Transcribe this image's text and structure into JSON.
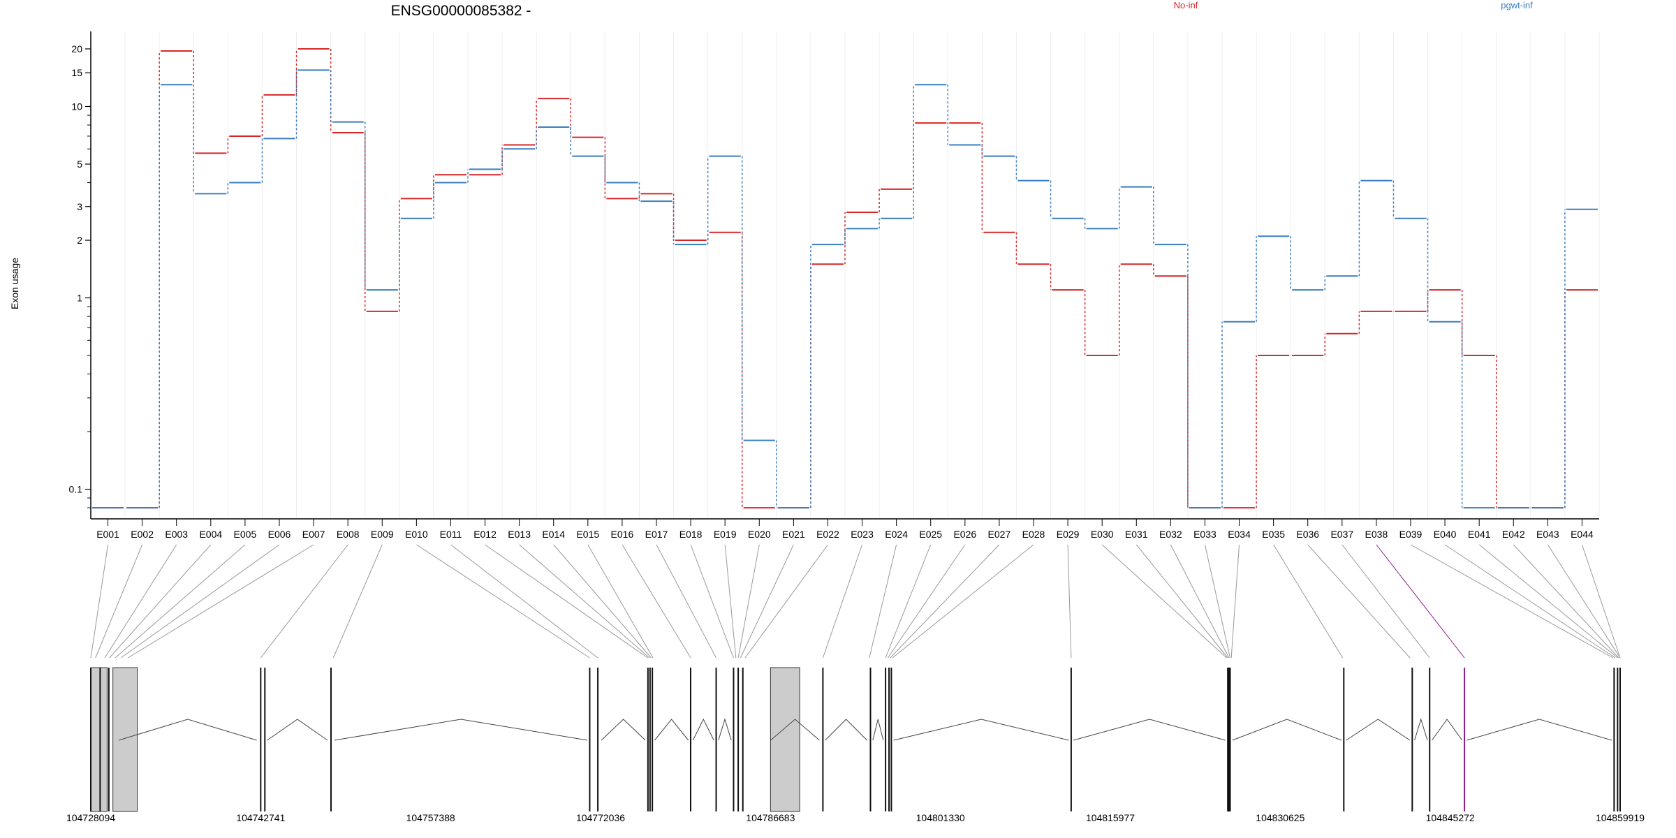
{
  "title": "ENSG00000085382 -",
  "legend": [
    {
      "label": "No-inf",
      "color": "#d62728"
    },
    {
      "label": "pgwt-inf",
      "color": "#3a7ebf"
    }
  ],
  "chart_data": {
    "type": "line",
    "title": "ENSG00000085382 -",
    "ylabel": "Exon usage",
    "y_scale": "log",
    "y_ticks": [
      0.1,
      1,
      2,
      3,
      5,
      10,
      15,
      20
    ],
    "y_tick_labels": [
      "0.1",
      "1",
      "2",
      "3",
      "5",
      "10",
      "15",
      "20"
    ],
    "categories": [
      "E001",
      "E002",
      "E003",
      "E004",
      "E005",
      "E006",
      "E007",
      "E008",
      "E009",
      "E010",
      "E011",
      "E012",
      "E013",
      "E014",
      "E015",
      "E016",
      "E017",
      "E018",
      "E019",
      "E020",
      "E021",
      "E022",
      "E023",
      "E024",
      "E025",
      "E026",
      "E027",
      "E028",
      "E029",
      "E030",
      "E031",
      "E032",
      "E033",
      "E034",
      "E035",
      "E036",
      "E037",
      "E038",
      "E039",
      "E040",
      "E041",
      "E042",
      "E043",
      "E044"
    ],
    "series": [
      {
        "name": "No-inf",
        "color": "#d62728",
        "values": [
          0.08,
          0.08,
          19.5,
          5.7,
          7,
          11.5,
          20,
          7.3,
          0.85,
          3.3,
          4.4,
          4.4,
          6.3,
          11,
          6.9,
          3.3,
          3.5,
          2,
          2.2,
          0.08,
          0.08,
          1.5,
          2.8,
          3.7,
          8.2,
          8.2,
          2.2,
          1.5,
          1.1,
          0.5,
          1.5,
          1.3,
          0.08,
          0.08,
          0.5,
          0.5,
          0.65,
          0.85,
          0.85,
          1.1,
          0.5,
          0.08,
          0.08,
          1.1
        ]
      },
      {
        "name": "pgwt-inf",
        "color": "#3a7ebf",
        "values": [
          0.08,
          0.08,
          13,
          3.5,
          4,
          6.8,
          15.5,
          8.3,
          1.1,
          2.6,
          4,
          4.7,
          6,
          7.8,
          5.5,
          4,
          3.2,
          1.9,
          5.5,
          0.18,
          0.08,
          1.9,
          2.3,
          2.6,
          13,
          6.3,
          5.5,
          4.1,
          2.6,
          2.3,
          3.8,
          1.9,
          0.08,
          0.75,
          2.1,
          1.1,
          1.3,
          4.1,
          2.6,
          0.75,
          0.08,
          0.08,
          0.08,
          2.9
        ]
      }
    ]
  },
  "gene_model": {
    "coordinate_labels": [
      "104728094",
      "104742741",
      "104757388",
      "104772036",
      "104786683",
      "104801330",
      "104815977",
      "104830625",
      "104845272",
      "104859919"
    ],
    "coordinate_start": 104728094,
    "coordinate_end": 104859919,
    "exon_positions": [
      104728094,
      104728900,
      104729650,
      104742741,
      104743100,
      104748800,
      104771100,
      104771800,
      104776120,
      104776300,
      104776500,
      104779800,
      104782000,
      104783500,
      104783900,
      104784300,
      104791200,
      104795300,
      104796600,
      104796900,
      104797100,
      104812600,
      104826100,
      104826200,
      104826300,
      104836100,
      104842000,
      104843500,
      104846500,
      104859400,
      104859700,
      104859919
    ],
    "introns": [
      [
        104730500,
        104742400
      ],
      [
        104743300,
        104748500
      ],
      [
        104749100,
        104770900
      ],
      [
        104772100,
        104775900
      ],
      [
        104776700,
        104779600
      ],
      [
        104780000,
        104781800
      ],
      [
        104782200,
        104783300
      ],
      [
        104786700,
        104790900
      ],
      [
        104791400,
        104795000
      ],
      [
        104795500,
        104796400
      ],
      [
        104797300,
        104812400
      ],
      [
        104812800,
        104825900
      ],
      [
        104826500,
        104835900
      ],
      [
        104836300,
        104841800
      ],
      [
        104842200,
        104843300
      ],
      [
        104843700,
        104846300
      ],
      [
        104846700,
        104859200
      ]
    ],
    "highlight_color": "#8b1a8b"
  }
}
